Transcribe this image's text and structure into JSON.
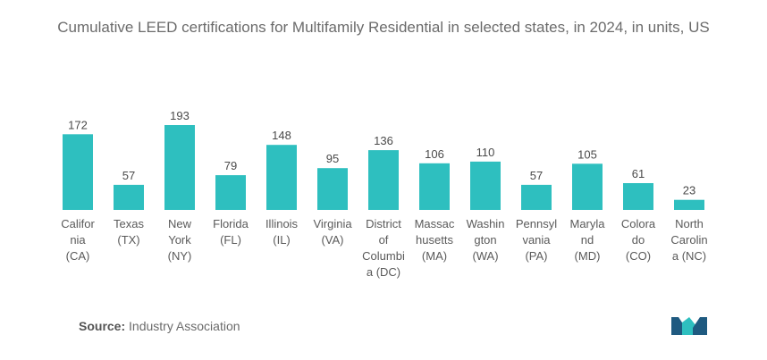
{
  "chart_data": {
    "type": "bar",
    "title": "Cumulative LEED certifications for Multifamily Residential in selected states, in 2024, in units, US",
    "categories": [
      [
        "Califor",
        "nia",
        "(CA)"
      ],
      [
        "Texas",
        "(TX)"
      ],
      [
        "New",
        "York",
        "(NY)"
      ],
      [
        "Florida",
        "(FL)"
      ],
      [
        "Illinois",
        "(IL)"
      ],
      [
        "Virginia",
        "(VA)"
      ],
      [
        "District",
        "of",
        "Columbi",
        "a (DC)"
      ],
      [
        "Massac",
        "husetts",
        "(MA)"
      ],
      [
        "Washin",
        "gton",
        "(WA)"
      ],
      [
        "Pennsyl",
        "vania",
        "(PA)"
      ],
      [
        "Maryla",
        "nd",
        "(MD)"
      ],
      [
        "Colora",
        "do",
        "(CO)"
      ],
      [
        "North",
        "Carolin",
        "a (NC)"
      ]
    ],
    "values": [
      172,
      57,
      193,
      79,
      148,
      95,
      136,
      106,
      110,
      57,
      105,
      61,
      23
    ],
    "ylim": [
      0,
      193
    ],
    "bar_color": "#2ebfbf",
    "grid": false,
    "legend": "none"
  },
  "source": {
    "label": "Source:",
    "text": "Industry Association"
  },
  "logo": {
    "icon": "mordor-logo-icon",
    "colors": [
      "#1f5a80",
      "#2ebfbf"
    ]
  }
}
